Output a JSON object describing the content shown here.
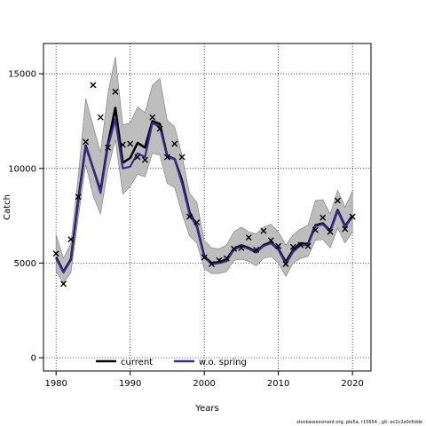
{
  "chart_data": {
    "type": "line",
    "title": "",
    "xlabel": "Years",
    "ylabel": "Catch",
    "xlim": [
      1978.3,
      2022.5
    ],
    "ylim": [
      -700,
      16600
    ],
    "x_ticks": [
      1980,
      1990,
      2000,
      2010,
      2020
    ],
    "y_ticks": [
      0,
      5000,
      10000,
      15000
    ],
    "grid": "dotted",
    "legend_placement": "bottom-center",
    "years": [
      1980,
      1981,
      1982,
      1983,
      1984,
      1985,
      1986,
      1987,
      1988,
      1989,
      1990,
      1991,
      1992,
      1993,
      1994,
      1995,
      1996,
      1997,
      1998,
      1999,
      2000,
      2001,
      2002,
      2003,
      2004,
      2005,
      2006,
      2007,
      2008,
      2009,
      2010,
      2011,
      2012,
      2013,
      2014,
      2015,
      2016,
      2017,
      2018,
      2019,
      2020
    ],
    "observed": [
      5500,
      3900,
      6250,
      8500,
      11400,
      14400,
      12700,
      11100,
      14050,
      11250,
      11300,
      10600,
      10450,
      12700,
      12100,
      10600,
      11300,
      10600,
      7450,
      7150,
      5300,
      4950,
      5150,
      5250,
      5750,
      5800,
      6350,
      5700,
      6700,
      6200,
      5900,
      4950,
      5850,
      5950,
      5900,
      6750,
      7400,
      6650,
      8300,
      6800,
      7450
    ],
    "series": [
      {
        "name": "current",
        "color": "#000000",
        "values": [
          5300,
          4550,
          5200,
          8350,
          11200,
          10000,
          8800,
          11300,
          13200,
          10300,
          10550,
          11350,
          11100,
          12500,
          12350,
          10650,
          10500,
          9350,
          7700,
          6950,
          5350,
          5000,
          5050,
          5200,
          5750,
          5950,
          5800,
          5600,
          5950,
          6100,
          5750,
          5050,
          5700,
          6050,
          6000,
          7000,
          7100,
          6700,
          7800,
          6950,
          7500
        ]
      },
      {
        "name": "w.o. spring",
        "color": "#3b2a8f",
        "values": [
          5250,
          4500,
          5150,
          8200,
          11150,
          10000,
          8700,
          11150,
          12600,
          10000,
          10100,
          10800,
          10600,
          12400,
          12200,
          10600,
          10500,
          9200,
          7600,
          6900,
          5300,
          4950,
          5000,
          5100,
          5700,
          5900,
          5750,
          5550,
          5900,
          6050,
          5700,
          4950,
          5600,
          5950,
          5950,
          6950,
          7050,
          6650,
          7750,
          6900,
          7450
        ]
      }
    ],
    "band_lower": [
      4550,
      3950,
      4500,
      7400,
      10200,
      8550,
      7600,
      9950,
      11500,
      8650,
      9050,
      9700,
      9550,
      10800,
      10700,
      9200,
      9000,
      7600,
      6450,
      6050,
      4700,
      4450,
      4450,
      4550,
      5150,
      5200,
      5100,
      4850,
      5250,
      5350,
      5000,
      4300,
      5000,
      5250,
      5350,
      6200,
      6250,
      5800,
      6850,
      6050,
      6650
    ],
    "band_upper": [
      6500,
      5250,
      6050,
      9600,
      13700,
      12250,
      10850,
      13950,
      15900,
      12300,
      12400,
      13250,
      12950,
      14400,
      14750,
      12550,
      12200,
      10700,
      8700,
      8200,
      6200,
      5800,
      5750,
      5950,
      6650,
      6900,
      6650,
      6550,
      6900,
      7050,
      6650,
      5950,
      6500,
      6800,
      7000,
      8300,
      8350,
      7600,
      8850,
      7950,
      8800
    ],
    "legend": [
      "current",
      "w.o. spring"
    ]
  },
  "footer": "stockassessment.org, ple5a, r15654 , git: ec2c2a0c6dde"
}
